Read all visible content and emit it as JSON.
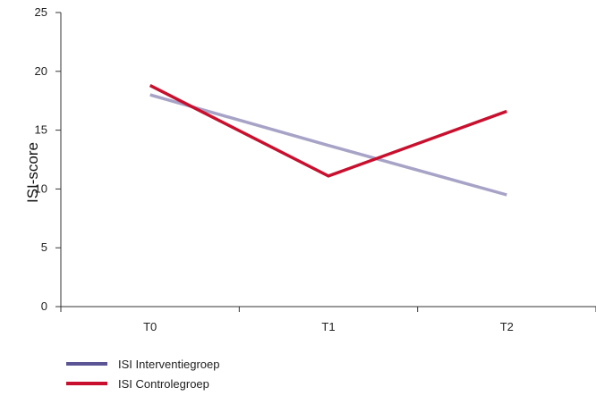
{
  "chart_data": {
    "type": "line",
    "categories": [
      "T0",
      "T1",
      "T2"
    ],
    "ylabel": "ISI-score",
    "xlabel": "",
    "ylim": [
      0,
      25
    ],
    "yticks": [
      0,
      5,
      10,
      15,
      20,
      25
    ],
    "grid": false,
    "legend_position": "bottom-left",
    "series": [
      {
        "name": "ISI Interventiegroep",
        "color": "#a7a3c7",
        "legend_color": "#5b5596",
        "values": [
          18.0,
          13.7,
          9.5
        ]
      },
      {
        "name": "ISI Controlegroep",
        "color": "#c8102e",
        "legend_color": "#c8102e",
        "values": [
          18.8,
          11.1,
          16.6
        ]
      }
    ]
  }
}
